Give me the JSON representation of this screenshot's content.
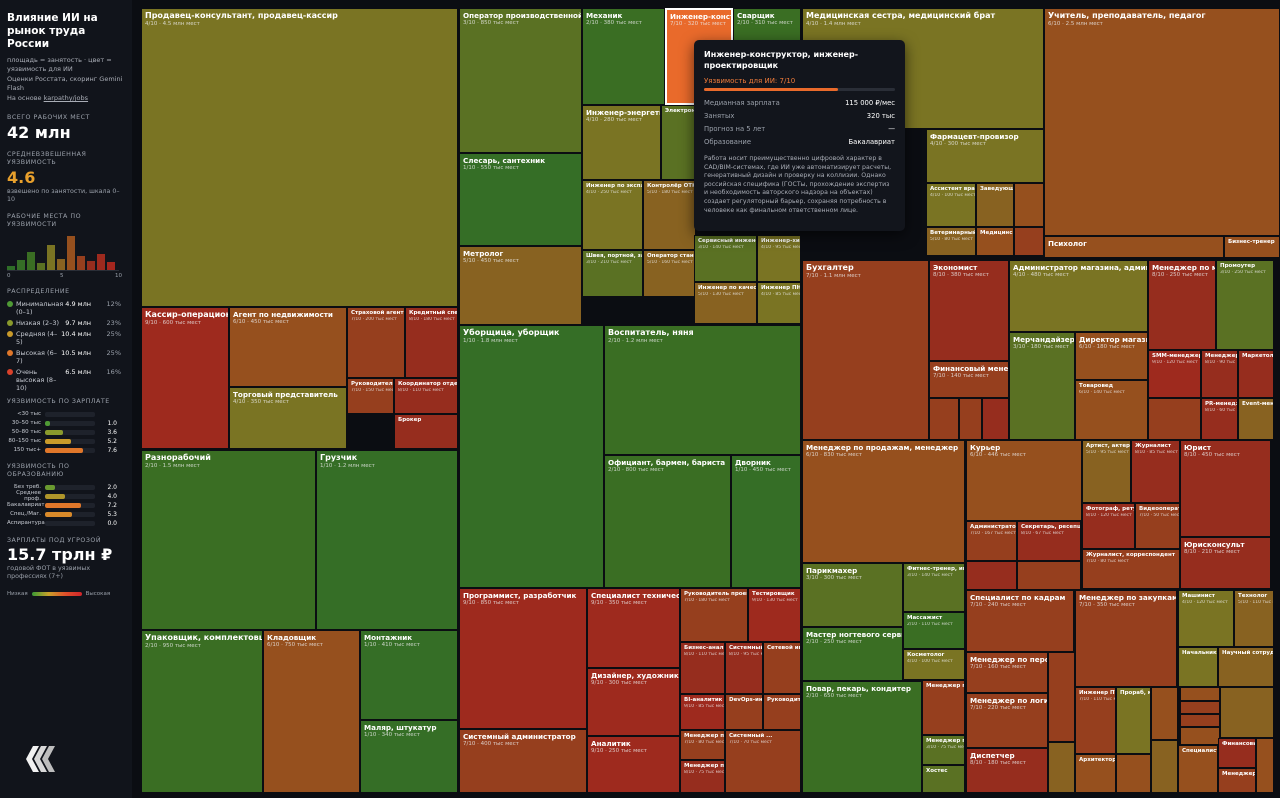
{
  "sidebar": {
    "title": "Влияние ИИ на рынок труда России",
    "subtitle": "площадь = занятость · цвет = уязвимость для ИИ",
    "source": "Оценки Росстата, скоринг Gemini Flash",
    "based_on": "На основе",
    "link": "karpathy/jobs",
    "total_label": "ВСЕГО РАБОЧИХ МЕСТ",
    "total_value": "42 млн",
    "avg_label": "СРЕДНЕВЗВЕШЕННАЯ УЯЗВИМОСТЬ",
    "avg_value": "4.6",
    "avg_note": "взвешено по занятости, шкала 0–10",
    "hist_label": "РАБОЧИЕ МЕСТА ПО УЯЗВИМОСТИ",
    "hist_axis": [
      "0",
      "5",
      "10"
    ],
    "hist_values": [
      0.4,
      1.1,
      1.9,
      0.7,
      2.6,
      1.2,
      3.6,
      1.5,
      1.0,
      1.7,
      0.8
    ],
    "dist_label": "РАСПРЕДЕЛЕНИЕ",
    "distribution": [
      {
        "label": "Минимальная (0–1)",
        "value": "4.9 млн",
        "pct": "12%",
        "color": "#4f9a35"
      },
      {
        "label": "Низкая (2–3)",
        "value": "9.7 млн",
        "pct": "23%",
        "color": "#8a9a2c"
      },
      {
        "label": "Средняя (4–5)",
        "value": "10.4 млн",
        "pct": "25%",
        "color": "#c99a2a"
      },
      {
        "label": "Высокая (6–7)",
        "value": "10.5 млн",
        "pct": "25%",
        "color": "#e0772a"
      },
      {
        "label": "Очень высокая (8–10)",
        "value": "6.5 млн",
        "pct": "16%",
        "color": "#d9412a"
      }
    ],
    "salary_label": "УЯЗВИМОСТЬ ПО ЗАРПЛАТЕ",
    "salary_rows": [
      {
        "label": "<30 тыс",
        "value": "",
        "frac": 0,
        "color": "#4f9a35"
      },
      {
        "label": "30–50 тыс",
        "value": "1.0",
        "frac": 0.1,
        "color": "#4f9a35"
      },
      {
        "label": "50–80 тыс",
        "value": "3.6",
        "frac": 0.36,
        "color": "#8a9a2c"
      },
      {
        "label": "80–150 тыс",
        "value": "5.2",
        "frac": 0.52,
        "color": "#c99a2a"
      },
      {
        "label": "150 тыс+",
        "value": "7.6",
        "frac": 0.76,
        "color": "#e0772a"
      }
    ],
    "edu_label": "УЯЗВИМОСТЬ ПО ОБРАЗОВАНИЮ",
    "edu_rows": [
      {
        "label": "Без треб.",
        "value": "2.0",
        "frac": 0.2,
        "color": "#6a9a30"
      },
      {
        "label": "Среднее проф.",
        "value": "4.0",
        "frac": 0.4,
        "color": "#b0962a"
      },
      {
        "label": "Бакалавриат",
        "value": "7.2",
        "frac": 0.72,
        "color": "#e0772a"
      },
      {
        "label": "Спец./Маг.",
        "value": "5.3",
        "frac": 0.53,
        "color": "#d98a2a"
      },
      {
        "label": "Аспирантура",
        "value": "0.0",
        "frac": 0,
        "color": "#4f9a35"
      }
    ],
    "threat_label": "ЗАРПЛАТЫ ПОД УГРОЗОЙ",
    "threat_value": "15.7 трлн ₽",
    "threat_note": "годовой ФОТ в уязвимых профессиях (7+)",
    "legend_low": "Низкая",
    "legend_high": "Высокая"
  },
  "tooltip": {
    "title": "Инженер-конструктор, инженер-проектировщик",
    "exposure_label": "Уязвимость для ИИ: 7/10",
    "exposure": 7,
    "rows": [
      {
        "k": "Медианная зарплата",
        "v": "115 000 ₽/мес"
      },
      {
        "k": "Занятых",
        "v": "320 тыс"
      },
      {
        "k": "Прогноз на 5 лет",
        "v": "—"
      },
      {
        "k": "Образование",
        "v": "Бакалавриат"
      }
    ],
    "description": "Работа носит преимущественно цифровой характер в CAD/BIM-системах, где ИИ уже автоматизирует расчеты, генеративный дизайн и проверку на коллизии. Однако российская специфика (ГОСТы, прохождение экспертиз и необходимость авторского надзора на объектах) создает регуляторный барьер, сохраняя потребность в человеке как финальном ответственном лице."
  },
  "chart_data": {
    "type": "treemap",
    "value_unit": "тыс",
    "color_scale": {
      "low": "#2f6a2a",
      "high": "#d03a24",
      "max": 10
    },
    "items": [
      {
        "name": "Продавец-консультант, продавец-кассир",
        "sub": "4/10 · 4.5 млн мест",
        "score": 4,
        "jobs": 4500
      },
      {
        "name": "Кассир-операционист",
        "sub": "9/10 · 600 тыс мест",
        "score": 9,
        "jobs": 600
      },
      {
        "name": "Агент по недвижимости",
        "sub": "6/10 · 450 тыс мест",
        "score": 6,
        "jobs": 450
      },
      {
        "name": "Страховой агент",
        "sub": "7/10 · 200 тыс мест",
        "score": 7,
        "jobs": 200
      },
      {
        "name": "Кредитный специалист",
        "sub": "8/10 · 180 тыс мест",
        "score": 8,
        "jobs": 180
      },
      {
        "name": "Торговый представитель",
        "sub": "4/10 · 350 тыс мест",
        "score": 4,
        "jobs": 350
      },
      {
        "name": "Руководитель",
        "sub": "7/10 · 150 тыс мест",
        "score": 7,
        "jobs": 150
      },
      {
        "name": "Координатор отдела",
        "sub": "8/10 · 110 тыс мест",
        "score": 8,
        "jobs": 110
      },
      {
        "name": "Брокер",
        "sub": "",
        "score": 8,
        "jobs": 80
      },
      {
        "name": "Разнорабочий",
        "sub": "2/10 · 1.5 млн мест",
        "score": 2,
        "jobs": 1500
      },
      {
        "name": "Грузчик",
        "sub": "1/10 · 1.2 млн мест",
        "score": 1,
        "jobs": 1200
      },
      {
        "name": "Упаковщик, комплектовщик",
        "sub": "2/10 · 950 тыс мест",
        "score": 2,
        "jobs": 950
      },
      {
        "name": "Кладовщик",
        "sub": "6/10 · 750 тыс мест",
        "score": 6,
        "jobs": 750
      },
      {
        "name": "Монтажник",
        "sub": "1/10 · 410 тыс мест",
        "score": 1,
        "jobs": 410
      },
      {
        "name": "Маляр, штукатур",
        "sub": "1/10 · 340 тыс мест",
        "score": 1,
        "jobs": 340
      },
      {
        "name": "Оператор производственной линии",
        "sub": "3/10 · 850 тыс мест",
        "score": 3,
        "jobs": 850
      },
      {
        "name": "Механик",
        "sub": "2/10 · 380 тыс мест",
        "score": 2,
        "jobs": 380
      },
      {
        "name": "Инженер-конструктор",
        "sub": "7/10 · 320 тыс мест",
        "score": 7,
        "jobs": 320
      },
      {
        "name": "Сварщик",
        "sub": "2/10 · 310 тыс мест",
        "score": 2,
        "jobs": 310
      },
      {
        "name": "Инженер-энергетик",
        "sub": "4/10 · 280 тыс мест",
        "score": 4,
        "jobs": 280
      },
      {
        "name": "Электромонтер",
        "sub": "",
        "score": 3,
        "jobs": 250
      },
      {
        "name": "Слесарь, сантехник",
        "sub": "1/10 · 550 тыс мест",
        "score": 1,
        "jobs": 550
      },
      {
        "name": "Инженер по эксплуатации",
        "sub": "4/10 · 250 тыс мест",
        "score": 4,
        "jobs": 250
      },
      {
        "name": "Контролёр ОТК",
        "sub": "5/10 · 180 тыс мест",
        "score": 5,
        "jobs": 180
      },
      {
        "name": "Метролог",
        "sub": "5/10 · 450 тыс мест",
        "score": 5,
        "jobs": 450
      },
      {
        "name": "Швея, портной, закройщик",
        "sub": "3/10 · 210 тыс мест",
        "score": 3,
        "jobs": 210
      },
      {
        "name": "Оператор станков",
        "sub": "5/10 · 160 тыс мест",
        "score": 5,
        "jobs": 160
      },
      {
        "name": "Сервисный инженер",
        "sub": "3/10 · 140 тыс мест",
        "score": 3,
        "jobs": 140
      },
      {
        "name": "Инженер-химик",
        "sub": "4/10 · 95 тыс мест",
        "score": 4,
        "jobs": 95
      },
      {
        "name": "Инженер по качеству",
        "sub": "5/10 · 130 тыс мест",
        "score": 5,
        "jobs": 130
      },
      {
        "name": "Инженер ПНР",
        "sub": "4/10 · 85 тыс мест",
        "score": 4,
        "jobs": 85
      },
      {
        "name": "Уборщица, уборщик",
        "sub": "1/10 · 1.8 млн мест",
        "score": 1,
        "jobs": 1800
      },
      {
        "name": "Воспитатель, няня",
        "sub": "2/10 · 1.2 млн мест",
        "score": 2,
        "jobs": 1200
      },
      {
        "name": "Официант, бармен, бариста",
        "sub": "2/10 · 800 тыс мест",
        "score": 2,
        "jobs": 800
      },
      {
        "name": "Дворник",
        "sub": "1/10 · 450 тыс мест",
        "score": 1,
        "jobs": 450
      },
      {
        "name": "Программист, разработчик",
        "sub": "9/10 · 850 тыс мест",
        "score": 9,
        "jobs": 850
      },
      {
        "name": "Специалист технической поддержки",
        "sub": "9/10 · 350 тыс мест",
        "score": 9,
        "jobs": 350
      },
      {
        "name": "Руководитель проектов",
        "sub": "7/10 · 180 тыс мест",
        "score": 7,
        "jobs": 180
      },
      {
        "name": "Тестировщик",
        "sub": "9/10 · 130 тыс мест",
        "score": 9,
        "jobs": 130
      },
      {
        "name": "Бизнес-аналитик",
        "sub": "8/10 · 110 тыс мест",
        "score": 8,
        "jobs": 110
      },
      {
        "name": "Системный аналитик",
        "sub": "8/10 · 95 тыс мест",
        "score": 8,
        "jobs": 95
      },
      {
        "name": "Сетевой инженер",
        "sub": "",
        "score": 7,
        "jobs": 70
      },
      {
        "name": "Дизайнер, художник",
        "sub": "9/10 · 300 тыс мест",
        "score": 9,
        "jobs": 300
      },
      {
        "name": "BI-аналитик",
        "sub": "9/10 · 85 тыс мест",
        "score": 9,
        "jobs": 85
      },
      {
        "name": "DevOps-инженер",
        "sub": "",
        "score": 7,
        "jobs": 60
      },
      {
        "name": "Руководитель",
        "sub": "",
        "score": 7,
        "jobs": 60
      },
      {
        "name": "Аналитик",
        "sub": "9/10 · 250 тыс мест",
        "score": 9,
        "jobs": 250
      },
      {
        "name": "Менеджер по ...",
        "sub": "7/10 · 80 тыс мест",
        "score": 7,
        "jobs": 80
      },
      {
        "name": "Менеджер по ...",
        "sub": "8/10 · 75 тыс мест",
        "score": 8,
        "jobs": 75
      },
      {
        "name": "Системный администратор",
        "sub": "7/10 · 400 тыс мест",
        "score": 7,
        "jobs": 400
      },
      {
        "name": "Системный ...",
        "sub": "7/10 · 70 тыс мест",
        "score": 7,
        "jobs": 70
      },
      {
        "name": "Медицинская сестра, медицинский брат",
        "sub": "4/10 · 1.4 млн мест",
        "score": 4,
        "jobs": 1400
      },
      {
        "name": "Фармацевт-провизор",
        "sub": "4/10 · 300 тыс мест",
        "score": 4,
        "jobs": 300
      },
      {
        "name": "Ассистент врача",
        "sub": "4/10 · 100 тыс мест",
        "score": 4,
        "jobs": 100
      },
      {
        "name": "Заведующий",
        "sub": "",
        "score": 5,
        "jobs": 60
      },
      {
        "name": "Ветеринарный врач",
        "sub": "5/10 · 80 тыс мест",
        "score": 5,
        "jobs": 80
      },
      {
        "name": "Медицинский",
        "sub": "",
        "score": 6,
        "jobs": 60
      },
      {
        "name": "Учитель, преподаватель, педагог",
        "sub": "6/10 · 2.5 млн мест",
        "score": 6,
        "jobs": 2500
      },
      {
        "name": "Психолог",
        "sub": "",
        "score": 6,
        "jobs": 200
      },
      {
        "name": "Бизнес-тренер",
        "sub": "",
        "score": 6,
        "jobs": 70
      },
      {
        "name": "Бухгалтер",
        "sub": "7/10 · 1.1 млн мест",
        "score": 7,
        "jobs": 1100
      },
      {
        "name": "Экономист",
        "sub": "8/10 · 380 тыс мест",
        "score": 8,
        "jobs": 380
      },
      {
        "name": "Финансовый менеджер",
        "sub": "7/10 · 140 тыс мест",
        "score": 7,
        "jobs": 140
      },
      {
        "name": "Администратор магазина, админ",
        "sub": "4/10 · 480 тыс мест",
        "score": 4,
        "jobs": 480
      },
      {
        "name": "Мерчандайзер",
        "sub": "3/10 · 180 тыс мест",
        "score": 3,
        "jobs": 180
      },
      {
        "name": "Директор магазина",
        "sub": "6/10 · 180 тыс мест",
        "score": 6,
        "jobs": 180
      },
      {
        "name": "Товаровед",
        "sub": "6/10 · 140 тыс мест",
        "score": 6,
        "jobs": 140
      },
      {
        "name": "Менеджер по маркетингу",
        "sub": "8/10 · 250 тыс мест",
        "score": 8,
        "jobs": 250
      },
      {
        "name": "Промоутер",
        "sub": "3/10 · 250 тыс мест",
        "score": 3,
        "jobs": 250
      },
      {
        "name": "SMM-менеджер",
        "sub": "9/10 · 120 тыс мест",
        "score": 9,
        "jobs": 120
      },
      {
        "name": "Менеджер по рекламе",
        "sub": "8/10 · 90 тыс мест",
        "score": 8,
        "jobs": 90
      },
      {
        "name": "Маркетолог",
        "sub": "",
        "score": 8,
        "jobs": 80
      },
      {
        "name": "PR-менеджер",
        "sub": "8/10 · 60 тыс мест",
        "score": 8,
        "jobs": 60
      },
      {
        "name": "Event-менеджер",
        "sub": "",
        "score": 5,
        "jobs": 50
      },
      {
        "name": "Менеджер по продажам, менеджер",
        "sub": "6/10 · 830 тыс мест",
        "score": 6,
        "jobs": 830
      },
      {
        "name": "Курьер",
        "sub": "6/10 · 446 тыс мест",
        "score": 6,
        "jobs": 446
      },
      {
        "name": "Администратор",
        "sub": "7/10 · 167 тыс мест",
        "score": 7,
        "jobs": 167
      },
      {
        "name": "Секретарь, ресепшионист",
        "sub": "8/10 · 67 тыс мест",
        "score": 8,
        "jobs": 67
      },
      {
        "name": "Артист, актер, музыкант",
        "sub": "5/10 · 95 тыс мест",
        "score": 5,
        "jobs": 95
      },
      {
        "name": "Журналист",
        "sub": "8/10 · 85 тыс мест",
        "score": 8,
        "jobs": 85
      },
      {
        "name": "Фотограф, ретушер",
        "sub": "8/10 · 120 тыс мест",
        "score": 8,
        "jobs": 120
      },
      {
        "name": "Видеооператор",
        "sub": "7/10 · 50 тыс мест",
        "score": 7,
        "jobs": 50
      },
      {
        "name": "Журналист, корреспондент",
        "sub": "7/10 · 80 тыс мест",
        "score": 7,
        "jobs": 80
      },
      {
        "name": "Юрист",
        "sub": "8/10 · 450 тыс мест",
        "score": 8,
        "jobs": 450
      },
      {
        "name": "Юрисконсульт",
        "sub": "8/10 · 210 тыс мест",
        "score": 8,
        "jobs": 210
      },
      {
        "name": "Парикмахер",
        "sub": "3/10 · 300 тыс мест",
        "score": 3,
        "jobs": 300
      },
      {
        "name": "Фитнес-тренер, инструктор",
        "sub": "3/10 · 140 тыс мест",
        "score": 3,
        "jobs": 140
      },
      {
        "name": "Массажист",
        "sub": "2/10 · 110 тыс мест",
        "score": 2,
        "jobs": 110
      },
      {
        "name": "Мастер ногтевого сервиса",
        "sub": "2/10 · 250 тыс мест",
        "score": 2,
        "jobs": 250
      },
      {
        "name": "Косметолог",
        "sub": "4/10 · 100 тыс мест",
        "score": 4,
        "jobs": 100
      },
      {
        "name": "Повар, пекарь, кондитер",
        "sub": "2/10 · 650 тыс мест",
        "score": 2,
        "jobs": 650
      },
      {
        "name": "Менеджер по ...",
        "sub": "",
        "score": 7,
        "jobs": 90
      },
      {
        "name": "Менеджер по ...",
        "sub": "3/10 · 75 тыс мест",
        "score": 3,
        "jobs": 75
      },
      {
        "name": "Хостес",
        "sub": "",
        "score": 3,
        "jobs": 50
      },
      {
        "name": "Специалист по кадрам",
        "sub": "7/10 · 240 тыс мест",
        "score": 7,
        "jobs": 240
      },
      {
        "name": "Менеджер по персоналу",
        "sub": "7/10 · 160 тыс мест",
        "score": 7,
        "jobs": 160
      },
      {
        "name": "Менеджер по логистике",
        "sub": "7/10 · 220 тыс мест",
        "score": 7,
        "jobs": 220
      },
      {
        "name": "Диспетчер",
        "sub": "8/10 · 180 тыс мест",
        "score": 8,
        "jobs": 180
      },
      {
        "name": "Менеджер по закупкам",
        "sub": "7/10 · 350 тыс мест",
        "score": 7,
        "jobs": 350
      },
      {
        "name": "Инженер ПТО",
        "sub": "7/10 · 110 тыс мест",
        "score": 7,
        "jobs": 110
      },
      {
        "name": "Прораб, мастер",
        "sub": "",
        "score": 4,
        "jobs": 90
      },
      {
        "name": "Архитектор",
        "sub": "",
        "score": 6,
        "jobs": 90
      },
      {
        "name": "Машинист",
        "sub": "4/10 · 120 тыс мест",
        "score": 4,
        "jobs": 120
      },
      {
        "name": "Технолог",
        "sub": "5/10 · 110 тыс мест",
        "score": 5,
        "jobs": 110
      },
      {
        "name": "Начальник смены",
        "sub": "",
        "score": 4,
        "jobs": 90
      },
      {
        "name": "Научный сотрудник",
        "sub": "",
        "score": 5,
        "jobs": 70
      },
      {
        "name": "Специалист",
        "sub": "",
        "score": 6,
        "jobs": 70
      },
      {
        "name": "Финансовый",
        "sub": "",
        "score": 8,
        "jobs": 50
      },
      {
        "name": "Менеджер",
        "sub": "",
        "score": 7,
        "jobs": 50
      }
    ]
  }
}
